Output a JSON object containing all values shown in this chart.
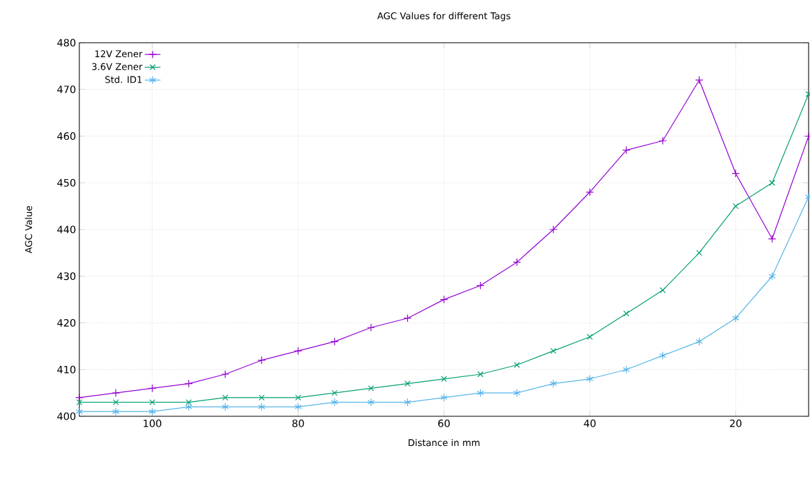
{
  "chart_data": {
    "type": "line",
    "title": "AGC Values for different Tags",
    "xlabel": "Distance in mm",
    "ylabel": "AGC Value",
    "x": [
      110,
      105,
      100,
      95,
      90,
      85,
      80,
      75,
      70,
      65,
      60,
      55,
      50,
      45,
      40,
      35,
      30,
      25,
      20,
      15,
      10
    ],
    "series": [
      {
        "name": "12V Zener",
        "color": "#9400d3",
        "marker": "plus",
        "values": [
          404,
          405,
          406,
          407,
          409,
          412,
          414,
          416,
          419,
          421,
          425,
          428,
          433,
          440,
          448,
          457,
          459,
          472,
          452,
          438,
          460
        ]
      },
      {
        "name": "3.6V Zener",
        "color": "#009e73",
        "marker": "x",
        "values": [
          403,
          403,
          403,
          403,
          404,
          404,
          404,
          405,
          406,
          407,
          408,
          409,
          411,
          414,
          417,
          422,
          427,
          435,
          445,
          450,
          469
        ]
      },
      {
        "name": "Std. ID1",
        "color": "#56b4e9",
        "marker": "cross",
        "values": [
          401,
          401,
          401,
          402,
          402,
          402,
          402,
          403,
          403,
          403,
          404,
          405,
          405,
          407,
          408,
          410,
          413,
          416,
          421,
          430,
          447
        ]
      }
    ],
    "xlim": [
      110,
      10
    ],
    "xticks": [
      100,
      80,
      60,
      40,
      20
    ],
    "ylim": [
      400,
      480
    ],
    "yticks": [
      400,
      410,
      420,
      430,
      440,
      450,
      460,
      470,
      480
    ],
    "grid": true,
    "legend": "top left",
    "line_style": "solid"
  }
}
